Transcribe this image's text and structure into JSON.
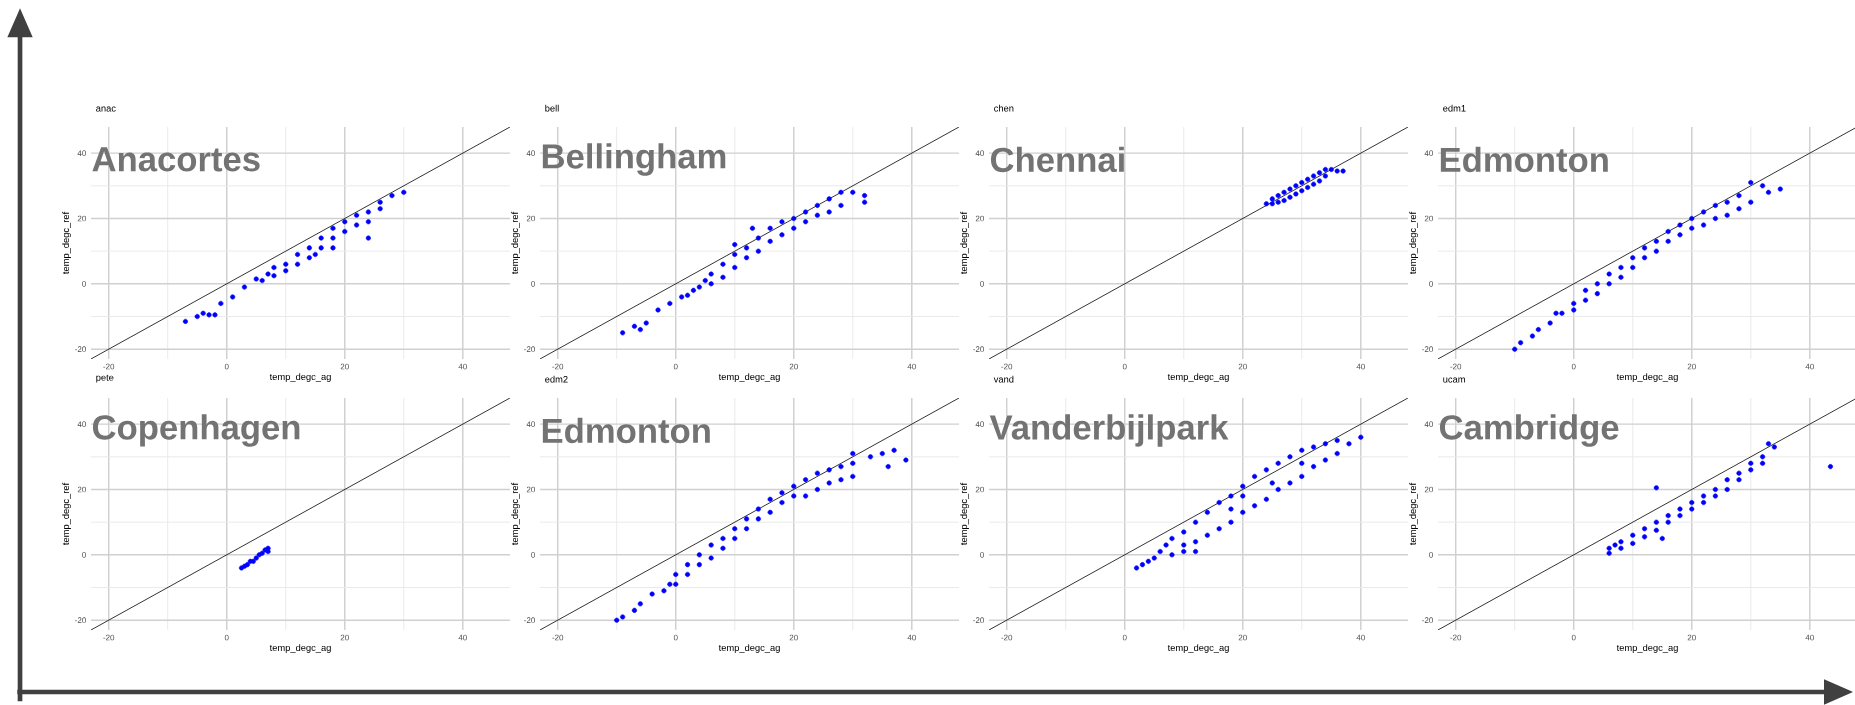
{
  "chart_data": [
    {
      "type": "scatter",
      "title": "anac",
      "annotations": [
        "Anacortes"
      ],
      "xlabel": "temp_degc_ag",
      "ylabel": "temp_degc_ref",
      "xlim": [
        -23,
        48
      ],
      "ylim": [
        -23,
        48
      ],
      "xticks": [
        -20,
        0,
        20,
        40
      ],
      "yticks": [
        -20,
        0,
        20,
        40
      ],
      "grid": true,
      "series": [
        {
          "marker": "circle",
          "color": "#0000ff",
          "x": [
            -7,
            -5,
            -3,
            -2,
            -4,
            -1,
            1,
            3,
            5,
            6,
            7,
            8,
            8,
            10,
            10,
            12,
            12,
            14,
            14,
            16,
            16,
            18,
            18,
            20,
            20,
            22,
            22,
            24,
            24,
            26,
            26,
            28,
            30,
            24,
            18,
            15
          ],
          "values": [
            -11.5,
            -10,
            -9.5,
            -9.5,
            -9,
            -6,
            -4,
            -1,
            1.5,
            1,
            3,
            5,
            2.5,
            6,
            4,
            9,
            6,
            11,
            8,
            14,
            11,
            17,
            14,
            19,
            16,
            21,
            18,
            22,
            19,
            25,
            23,
            27,
            28,
            14,
            11,
            9
          ]
        },
        {
          "type": "line",
          "color": "#000000",
          "x": [
            -23,
            48
          ],
          "values": [
            -23,
            48
          ]
        }
      ]
    },
    {
      "type": "scatter",
      "title": "bell",
      "annotations": [
        "Bellingham"
      ],
      "xlabel": "temp_degc_ag",
      "ylabel": "temp_degc_ref",
      "xlim": [
        -23,
        48
      ],
      "ylim": [
        -23,
        48
      ],
      "xticks": [
        -20,
        0,
        20,
        40
      ],
      "yticks": [
        -20,
        0,
        20,
        40
      ],
      "grid": true,
      "series": [
        {
          "marker": "circle",
          "color": "#0000ff",
          "x": [
            -9,
            -7,
            -6,
            -5,
            -3,
            -1,
            1,
            2,
            3,
            4,
            5,
            6,
            6,
            8,
            8,
            10,
            10,
            12,
            12,
            14,
            14,
            16,
            16,
            18,
            18,
            20,
            20,
            22,
            22,
            24,
            24,
            26,
            26,
            28,
            28,
            30,
            32,
            32,
            13,
            10
          ],
          "values": [
            -15,
            -13,
            -14,
            -12,
            -8,
            -6,
            -4,
            -3.5,
            -2,
            -1,
            1,
            3,
            0,
            6,
            2,
            9,
            5,
            11,
            8,
            14,
            10,
            17,
            13,
            19,
            15,
            20,
            17,
            22,
            19,
            24,
            21,
            26,
            22,
            28,
            24,
            28,
            27,
            25,
            17,
            12
          ]
        },
        {
          "type": "line",
          "color": "#000000",
          "x": [
            -23,
            48
          ],
          "values": [
            -23,
            48
          ]
        }
      ]
    },
    {
      "type": "scatter",
      "title": "chen",
      "annotations": [
        "Chennai"
      ],
      "xlabel": "temp_degc_ag",
      "ylabel": "temp_degc_ref",
      "xlim": [
        -23,
        48
      ],
      "ylim": [
        -23,
        48
      ],
      "xticks": [
        -20,
        0,
        20,
        40
      ],
      "yticks": [
        -20,
        0,
        20,
        40
      ],
      "grid": true,
      "series": [
        {
          "marker": "circle",
          "color": "#0000ff",
          "x": [
            24,
            25,
            25,
            26,
            26,
            27,
            27,
            28,
            28,
            29,
            29,
            30,
            30,
            31,
            31,
            32,
            32,
            33,
            33,
            34,
            34,
            35,
            36,
            37
          ],
          "values": [
            24.5,
            26,
            24.5,
            27,
            25,
            28,
            25.5,
            29,
            26.5,
            30,
            27.5,
            31,
            28.5,
            32,
            29.5,
            33,
            30.5,
            34,
            31.5,
            35,
            33,
            35,
            34.5,
            34.5
          ]
        },
        {
          "type": "line",
          "color": "#000000",
          "x": [
            -23,
            48
          ],
          "values": [
            -23,
            48
          ]
        }
      ]
    },
    {
      "type": "scatter",
      "title": "edm1",
      "annotations": [
        "Edmonton"
      ],
      "xlabel": "temp_degc_ag",
      "ylabel": "temp_degc_ref",
      "xlim": [
        -23,
        48
      ],
      "ylim": [
        -23,
        48
      ],
      "xticks": [
        -20,
        0,
        20,
        40
      ],
      "yticks": [
        -20,
        0,
        20,
        40
      ],
      "grid": true,
      "series": [
        {
          "marker": "circle",
          "color": "#0000ff",
          "x": [
            -10,
            -9,
            -7,
            -6,
            -4,
            -3,
            -2,
            0,
            0,
            2,
            2,
            4,
            4,
            6,
            6,
            8,
            8,
            10,
            10,
            12,
            12,
            14,
            14,
            16,
            16,
            18,
            18,
            20,
            20,
            22,
            22,
            24,
            24,
            26,
            26,
            28,
            28,
            30,
            30,
            32,
            33,
            35
          ],
          "values": [
            -20,
            -18,
            -16,
            -14,
            -12,
            -9,
            -9,
            -6,
            -8,
            -2,
            -5,
            0,
            -3,
            3,
            0,
            5,
            2,
            8,
            5,
            11,
            8,
            13,
            10,
            16,
            13,
            18,
            15,
            20,
            17,
            22,
            18,
            24,
            20,
            25,
            21,
            27,
            23,
            31,
            25,
            30,
            28,
            29
          ]
        },
        {
          "type": "line",
          "color": "#000000",
          "x": [
            -23,
            48
          ],
          "values": [
            -23,
            48
          ]
        }
      ]
    },
    {
      "type": "scatter",
      "title": "pete",
      "annotations": [
        "Copenhagen"
      ],
      "xlabel": "temp_degc_ag",
      "ylabel": "temp_degc_ref",
      "xlim": [
        -23,
        48
      ],
      "ylim": [
        -23,
        48
      ],
      "xticks": [
        -20,
        0,
        20,
        40
      ],
      "yticks": [
        -20,
        0,
        20,
        40
      ],
      "grid": true,
      "series": [
        {
          "marker": "circle",
          "color": "#0000ff",
          "x": [
            2.5,
            3,
            3.5,
            4,
            4.5,
            5,
            5.5,
            6,
            6.5,
            7,
            7
          ],
          "values": [
            -4,
            -3.5,
            -3,
            -2,
            -2,
            -1,
            0,
            0.5,
            1.5,
            2,
            1
          ]
        },
        {
          "type": "line",
          "color": "#000000",
          "x": [
            -23,
            48
          ],
          "values": [
            -23,
            48
          ]
        }
      ]
    },
    {
      "type": "scatter",
      "title": "edm2",
      "annotations": [
        "Edmonton"
      ],
      "xlabel": "temp_degc_ag",
      "ylabel": "temp_degc_ref",
      "xlim": [
        -23,
        48
      ],
      "ylim": [
        -23,
        48
      ],
      "xticks": [
        -20,
        0,
        20,
        40
      ],
      "yticks": [
        -20,
        0,
        20,
        40
      ],
      "grid": true,
      "series": [
        {
          "marker": "circle",
          "color": "#0000ff",
          "x": [
            -10,
            -9,
            -7,
            -6,
            -4,
            -2,
            -1,
            0,
            0,
            2,
            2,
            4,
            4,
            6,
            6,
            8,
            8,
            10,
            10,
            12,
            12,
            14,
            14,
            16,
            16,
            18,
            18,
            20,
            20,
            22,
            22,
            24,
            24,
            26,
            26,
            28,
            28,
            30,
            30,
            30,
            33,
            35,
            37,
            39,
            36
          ],
          "values": [
            -20,
            -19,
            -17,
            -15,
            -12,
            -11,
            -9,
            -6,
            -9,
            -3,
            -6,
            0,
            -3,
            3,
            -1,
            5,
            2,
            8,
            5,
            11,
            8,
            14,
            11,
            17,
            13,
            19,
            16,
            21,
            18,
            23,
            18,
            25,
            20,
            26,
            22,
            27,
            23,
            28,
            24,
            31,
            30,
            31,
            32,
            29,
            27
          ]
        },
        {
          "type": "line",
          "color": "#000000",
          "x": [
            -23,
            48
          ],
          "values": [
            -23,
            48
          ]
        }
      ]
    },
    {
      "type": "scatter",
      "title": "vand",
      "annotations": [
        "Vanderbijlpark"
      ],
      "xlabel": "temp_degc_ag",
      "ylabel": "temp_degc_ref",
      "xlim": [
        -23,
        48
      ],
      "ylim": [
        -23,
        48
      ],
      "xticks": [
        -20,
        0,
        20,
        40
      ],
      "yticks": [
        -20,
        0,
        20,
        40
      ],
      "grid": true,
      "series": [
        {
          "marker": "circle",
          "color": "#0000ff",
          "x": [
            2,
            3,
            4,
            5,
            6,
            7,
            8,
            8,
            10,
            10,
            10,
            12,
            12,
            12,
            14,
            14,
            16,
            16,
            18,
            18,
            18,
            20,
            20,
            22,
            22,
            24,
            24,
            26,
            26,
            28,
            28,
            30,
            30,
            32,
            32,
            34,
            34,
            36,
            36,
            38,
            40,
            20,
            25,
            30
          ],
          "values": [
            -4,
            -3,
            -2,
            -1,
            1,
            3,
            5,
            0,
            7,
            3,
            1,
            10,
            4,
            1,
            13,
            6,
            16,
            8,
            18,
            10,
            14,
            21,
            13,
            24,
            15,
            26,
            17,
            28,
            20,
            30,
            22,
            32,
            24,
            33,
            27,
            34,
            29,
            35,
            31,
            34,
            36,
            18,
            22,
            28
          ]
        },
        {
          "type": "line",
          "color": "#000000",
          "x": [
            -23,
            48
          ],
          "values": [
            -23,
            48
          ]
        }
      ]
    },
    {
      "type": "scatter",
      "title": "ucam",
      "annotations": [
        "Cambridge"
      ],
      "xlabel": "temp_degc_ag",
      "ylabel": "temp_degc_ref",
      "xlim": [
        -23,
        48
      ],
      "ylim": [
        -23,
        48
      ],
      "xticks": [
        -20,
        0,
        20,
        40
      ],
      "yticks": [
        -20,
        0,
        20,
        40
      ],
      "grid": true,
      "series": [
        {
          "marker": "circle",
          "color": "#0000ff",
          "x": [
            6,
            6,
            7,
            8,
            8,
            10,
            10,
            12,
            12,
            14,
            14,
            15,
            16,
            16,
            18,
            18,
            20,
            20,
            22,
            22,
            24,
            24,
            26,
            26,
            28,
            28,
            30,
            30,
            32,
            32,
            34,
            33,
            43.5,
            14
          ],
          "values": [
            0.5,
            2,
            3,
            2,
            4,
            6,
            3.5,
            8,
            5.5,
            10,
            7.5,
            5,
            12,
            10,
            14,
            12,
            16,
            14,
            18,
            16,
            20,
            18,
            23,
            20,
            25,
            23,
            28,
            26,
            30,
            28,
            33,
            34,
            27,
            20.5
          ]
        },
        {
          "type": "line",
          "color": "#000000",
          "x": [
            -23,
            48
          ],
          "values": [
            -23,
            48
          ]
        }
      ]
    }
  ]
}
